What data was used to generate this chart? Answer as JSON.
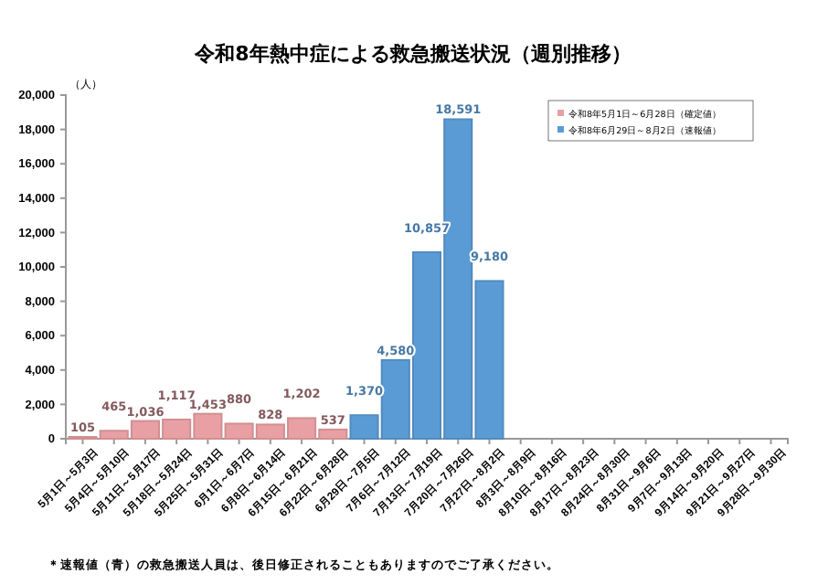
{
  "chart_data": {
    "type": "bar",
    "title": "令和8年熱中症による救急搬送状況（週別推移）",
    "ylabel": "（人）",
    "categories": [
      "5月1日～5月3日",
      "5月4日～5月10日",
      "5月11日～5月17日",
      "5月18日～5月24日",
      "5月25日～5月31日",
      "6月1日～6月7日",
      "6月8日～6月14日",
      "6月15日～6月21日",
      "6月22日～6月28日",
      "6月29日～7月5日",
      "7月6日～7月12日",
      "7月13日～7月19日",
      "7月20日～7月26日",
      "7月27日～8月2日",
      "8月3日～8月9日",
      "8月10日～8月16日",
      "8月17日～8月23日",
      "8月24日～8月30日",
      "8月31日～9月6日",
      "9月7日～9月13日",
      "9月14日～9月20日",
      "9月21日～9月27日",
      "9月28日～9月30日"
    ],
    "series": [
      {
        "name": "令和8年5月1日～6月28日（確定値）",
        "color": "#e8a0a4",
        "values": [
          105,
          465,
          1036,
          1117,
          1453,
          880,
          828,
          1202,
          537,
          null,
          null,
          null,
          null,
          null,
          null,
          null,
          null,
          null,
          null,
          null,
          null,
          null,
          null
        ],
        "value_labels": [
          "105",
          "465",
          "1,036",
          "1,117",
          "1,453",
          "880",
          "828",
          "1,202",
          "537",
          null,
          null,
          null,
          null,
          null,
          null,
          null,
          null,
          null,
          null,
          null,
          null,
          null,
          null
        ]
      },
      {
        "name": "令和8年6月29日～8月2日（速報値）",
        "color": "#5b9bd5",
        "values": [
          null,
          null,
          null,
          null,
          null,
          null,
          null,
          null,
          null,
          1370,
          4580,
          10857,
          18591,
          9180,
          null,
          null,
          null,
          null,
          null,
          null,
          null,
          null,
          null
        ],
        "value_labels": [
          null,
          null,
          null,
          null,
          null,
          null,
          null,
          null,
          null,
          "1,370",
          "4,580",
          "10,857",
          "18,591",
          "9,180",
          null,
          null,
          null,
          null,
          null,
          null,
          null,
          null,
          null
        ]
      }
    ],
    "ylim": [
      0,
      20000
    ],
    "yticks": [
      0,
      {
        "value": 2000,
        "label": "2,000"
      },
      {
        "value": 4000,
        "label": "4,000"
      },
      {
        "value": 6000,
        "label": "6,000"
      },
      {
        "value": 8000,
        "label": "8,000"
      },
      {
        "value": 10000,
        "label": "10,000"
      },
      {
        "value": 12000,
        "label": "12,000"
      },
      {
        "value": 14000,
        "label": "14,000"
      },
      {
        "value": 16000,
        "label": "16,000"
      },
      {
        "value": 18000,
        "label": "18,000"
      },
      {
        "value": 20000,
        "label": "20,000"
      }
    ],
    "legend": "top right",
    "grid": false,
    "annotations": [
      "＊速報値（青）の救急搬送人員は、後日修正されることもありますのでご了承ください。"
    ]
  }
}
